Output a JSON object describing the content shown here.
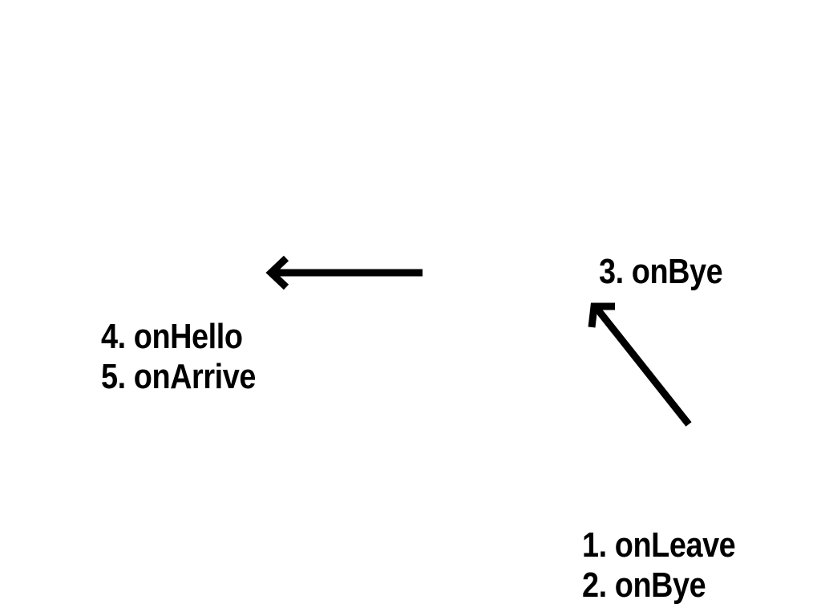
{
  "diagram": {
    "left_group": [
      "4. onHello",
      "5. onArrive"
    ],
    "top_right_label": "3. onBye",
    "bottom_right_group": [
      "1. onLeave",
      "2. onBye"
    ],
    "colors": {
      "background": "#ffffff",
      "ink": "#000000"
    },
    "arrows": [
      "arrow-left-icon",
      "arrow-up-left-icon"
    ]
  }
}
